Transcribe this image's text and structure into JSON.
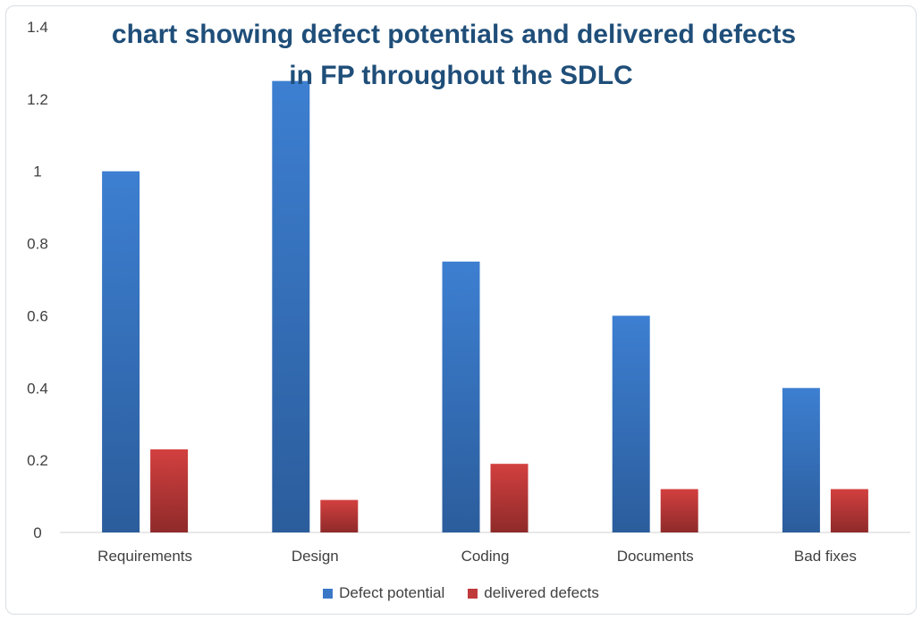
{
  "chart_data": {
    "type": "bar",
    "title_lines": [
      "chart showing defect potentials and delivered defects",
      "in FP throughout the SDLC"
    ],
    "categories": [
      "Requirements",
      "Design",
      "Coding",
      "Documents",
      "Bad fixes"
    ],
    "series": [
      {
        "name": "Defect potential",
        "color": "#3a78c7",
        "values": [
          1.0,
          1.25,
          0.75,
          0.6,
          0.4
        ]
      },
      {
        "name": "delivered defects",
        "color": "#c0393b",
        "values": [
          0.23,
          0.09,
          0.19,
          0.12,
          0.12
        ]
      }
    ],
    "yticks": [
      "0",
      "0.2",
      "0.4",
      "0.6",
      "0.8",
      "1",
      "1.2",
      "1.4"
    ],
    "ylim": [
      0,
      1.4
    ],
    "xlabel": "",
    "ylabel": "",
    "grid": false,
    "legend_position": "bottom"
  }
}
